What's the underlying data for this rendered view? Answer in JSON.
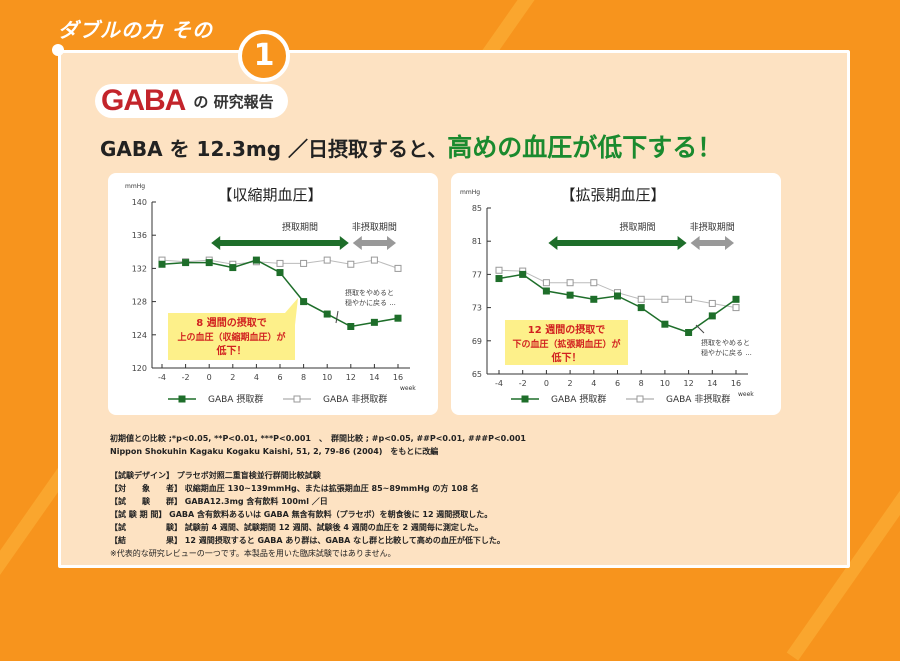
{
  "header": {
    "kicker": "ダブルの力 その",
    "number": "1",
    "gaba_logo": "GABA",
    "gaba_sub": "の 研究報告",
    "headline_pre": "GABA を 12.3mg ／日摂取すると、",
    "headline_emph": "高めの血圧が低下する！"
  },
  "colors": {
    "background": "#f7941d",
    "gaba_red": "#c3242b",
    "green": "#1e6e2a",
    "gray": "#999999",
    "callout": "#fdf08a"
  },
  "chart_data": [
    {
      "type": "line",
      "title": "【収縮期血圧】",
      "yunit": "mmHg",
      "xunit": "week",
      "ylim": [
        120,
        140
      ],
      "yticks": [
        120,
        124,
        128,
        132,
        136,
        140
      ],
      "x": [
        -4,
        -2,
        0,
        2,
        4,
        6,
        8,
        10,
        12,
        14,
        16
      ],
      "series": [
        {
          "name": "GABA 摂取群",
          "color": "#1e6e2a",
          "marker": "filled-square",
          "values": [
            132.5,
            132.7,
            132.7,
            132.1,
            133,
            131.5,
            128,
            126.5,
            125,
            125.5,
            126
          ]
        },
        {
          "name": "GABA 非摂取群",
          "color": "#bbbbbb",
          "marker": "open-square",
          "values": [
            133,
            132.8,
            133,
            132.5,
            132.8,
            132.6,
            132.6,
            133,
            132.5,
            133,
            132
          ]
        }
      ],
      "periods": [
        {
          "label": "摂取期間",
          "from": 0,
          "to": 12,
          "color": "#1e6e2a"
        },
        {
          "label": "非摂取期間",
          "from": 12,
          "to": 16,
          "color": "#999999"
        }
      ],
      "callout": [
        "8 週間の摂取で",
        "上の血圧（収縮期血圧）が",
        "低下！"
      ],
      "note": [
        "摂取をやめると",
        "穏やかに戻る ..."
      ]
    },
    {
      "type": "line",
      "title": "【拡張期血圧】",
      "yunit": "mmHg",
      "xunit": "week",
      "ylim": [
        65,
        85
      ],
      "yticks": [
        65,
        69,
        73,
        77,
        81,
        85
      ],
      "x": [
        -4,
        -2,
        0,
        2,
        4,
        6,
        8,
        10,
        12,
        14,
        16
      ],
      "series": [
        {
          "name": "GABA 摂取群",
          "color": "#1e6e2a",
          "marker": "filled-square",
          "values": [
            76.5,
            77,
            75,
            74.5,
            74,
            74.4,
            73,
            71,
            70,
            72,
            74
          ]
        },
        {
          "name": "GABA 非摂取群",
          "color": "#bbbbbb",
          "marker": "open-square",
          "values": [
            77.5,
            77.4,
            76,
            76,
            76,
            74.8,
            74,
            74,
            74,
            73.5,
            73
          ]
        }
      ],
      "periods": [
        {
          "label": "摂取期間",
          "from": 0,
          "to": 12,
          "color": "#1e6e2a"
        },
        {
          "label": "非摂取期間",
          "from": 12,
          "to": 16,
          "color": "#999999"
        }
      ],
      "callout": [
        "12 週間の摂取で",
        "下の血圧（拡張期血圧）が",
        "低下！"
      ],
      "note": [
        "摂取をやめると",
        "穏やかに戻る ..."
      ]
    }
  ],
  "notes": {
    "sig": "初期値との比較 ;*p<0.05, **P<0.01, ***P<0.001　、　群間比較 ; #p<0.05, ##P<0.01, ###P<0.001",
    "source": "Nippon Shokuhin Kagaku Kogaku Kaishi, 51, 2, 79-86 (2004)　をもとに改編",
    "design": "【試験デザイン】 プラセボ対照二重盲検並行群間比較試験",
    "subjects": "【対　　象　　者】 収縮期血圧 130~139mmHg、または拡張期血圧 85~89mmHg の方 108 名",
    "group": "【試　　験　　群】 GABA12.3mg 含有飲料 100ml ／日",
    "period": "【試 験 期 間】 GABA 含有飲料あるいは GABA 無含有飲料（プラセボ）を朝食後に 12 週間摂取した。",
    "test": "【試　　　　　験】 試験前 4 週間、試験期間 12 週間、試験後 4 週間の血圧を 2 週間毎に測定した。",
    "result": "【結　　　　　果】 12 週間摂取すると GABA あり群は、GABA なし群と比較して高めの血圧が低下した。",
    "disclaimer": "※代表的な研究レビューの一つです。本製品を用いた臨床試験ではありません。"
  }
}
